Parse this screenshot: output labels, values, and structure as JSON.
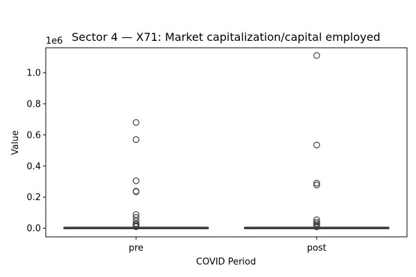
{
  "chart_data": {
    "type": "box",
    "title": "Sector 4 — X71: Market capitalization/capital employed",
    "xlabel": "COVID Period",
    "ylabel": "Value",
    "y_offset_label": "1e6",
    "categories": [
      "pre",
      "post"
    ],
    "ylim": [
      -55000,
      1160000
    ],
    "yticks": [
      0,
      200000,
      400000,
      600000,
      800000,
      1000000
    ],
    "ytick_labels": [
      "0.0",
      "0.2",
      "0.4",
      "0.6",
      "0.8",
      "1.0"
    ],
    "grid": false,
    "series": [
      {
        "category": "pre",
        "box": {
          "whisker_low": 0,
          "q1": 500,
          "median": 1500,
          "q3": 3500,
          "whisker_high": 7000
        },
        "outliers": [
          680000,
          570000,
          305000,
          238000,
          235000,
          88000,
          70000,
          48000,
          30000,
          22000,
          15000,
          10000
        ]
      },
      {
        "category": "post",
        "box": {
          "whisker_low": 0,
          "q1": 500,
          "median": 1500,
          "q3": 3500,
          "whisker_high": 7000
        },
        "outliers": [
          1110000,
          535000,
          290000,
          278000,
          55000,
          40000,
          30000,
          20000,
          13000,
          9000
        ]
      }
    ],
    "colors": {
      "line": "#3d3d3d",
      "box_fill": "#ffffff",
      "axis": "#000000"
    }
  }
}
